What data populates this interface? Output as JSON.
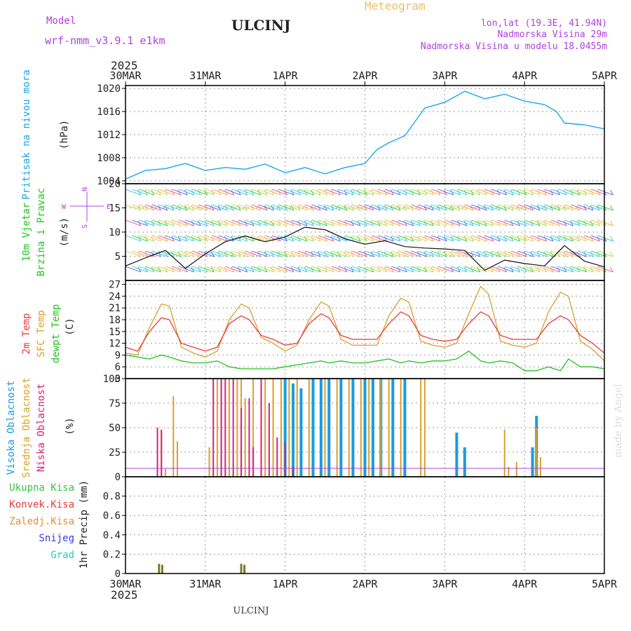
{
  "header": {
    "model_label": "Model",
    "model_name": "wrf-nmm_v3.9.1 e1km",
    "station": "ULCINJ",
    "title": "Meteogram",
    "coords": "lon,lat (19.3E, 41.94N)",
    "elevation": "Nadmorska Visina 29m",
    "model_elevation": "Nadmorska Visina u modelu 18.0455m",
    "year_top": "2025",
    "year_bottom": "2025",
    "footer": "ULCINJ",
    "watermark": "made by Angel"
  },
  "colors": {
    "pressure": "#1aa7e6",
    "temp2m": "#e83c3c",
    "sfc_temp": "#d9a02a",
    "dewpoint": "#22c322",
    "cloud_high": "#1a9be0",
    "cloud_mid": "#d9a02a",
    "cloud_low": "#d8207a",
    "precip_total": "#3ec13e",
    "precip_conv": "#e83c3c",
    "precip_frozen": "#f08a30",
    "snow": "#3a3ae0",
    "hail": "#2ac7c7",
    "precip_bar": "#7a7a2a",
    "title_orange": "#e8c06a",
    "purple": "#b040e0"
  },
  "chart_data": [
    {
      "type": "line",
      "panel": "pressure",
      "ylabel": [
        "Pritisak na nivou mora",
        "(hPa)"
      ],
      "x_ticks": [
        "30MAR",
        "31MAR",
        "1APR",
        "2APR",
        "3APR",
        "4APR",
        "5APR"
      ],
      "ylim": [
        1003.5,
        1020.5
      ],
      "yticks": [
        1004,
        1008,
        1012,
        1016,
        1020
      ],
      "grid": true,
      "x_days": [
        0,
        0.25,
        0.5,
        0.75,
        1.0,
        1.25,
        1.5,
        1.75,
        2.0,
        2.25,
        2.5,
        2.75,
        3.0,
        3.15,
        3.3,
        3.5,
        3.75,
        4.0,
        4.25,
        4.5,
        4.75,
        5.0,
        5.25,
        5.4,
        5.5,
        5.75,
        6.0
      ],
      "values": [
        1004.3,
        1005.8,
        1006.1,
        1007.0,
        1005.8,
        1006.3,
        1006.0,
        1006.9,
        1005.4,
        1006.3,
        1005.2,
        1006.3,
        1007.0,
        1009.4,
        1010.6,
        1011.8,
        1016.6,
        1017.6,
        1019.5,
        1018.2,
        1019.0,
        1017.8,
        1017.2,
        1016.0,
        1014.0,
        1013.7,
        1013.0
      ]
    },
    {
      "type": "line",
      "panel": "wind",
      "ylabel": [
        "10m Vjetar",
        "Brzina i Pravac",
        "(m/s)"
      ],
      "compass": {
        "N": "N",
        "E": "E",
        "S": "S",
        "W": "W"
      },
      "ylim": [
        0,
        20
      ],
      "yticks": [
        5,
        10,
        15,
        20
      ],
      "x_days": [
        0,
        0.3,
        0.5,
        0.75,
        1.0,
        1.25,
        1.5,
        1.75,
        2.0,
        2.25,
        2.5,
        2.75,
        3.0,
        3.25,
        3.5,
        3.75,
        4.0,
        4.25,
        4.5,
        4.75,
        5.0,
        5.25,
        5.5,
        5.75,
        6.0
      ],
      "series": [
        {
          "name": "speed",
          "values": [
            3.0,
            5.0,
            6.2,
            2.5,
            5.5,
            8.0,
            9.2,
            8.0,
            9.0,
            11.0,
            10.5,
            8.6,
            7.5,
            8.2,
            7.0,
            6.7,
            6.5,
            6.2,
            2.1,
            4.2,
            3.5,
            3.0,
            7.2,
            4.0,
            2.8
          ]
        }
      ]
    },
    {
      "type": "line",
      "panel": "temperature",
      "ylabel": [
        "2m Temp",
        "SFC Temp",
        "dewpt Temp",
        "(C)"
      ],
      "ylim": [
        3,
        28
      ],
      "yticks": [
        3,
        6,
        9,
        12,
        15,
        18,
        21,
        24,
        27
      ],
      "x_days": [
        0,
        0.15,
        0.3,
        0.45,
        0.55,
        0.7,
        0.85,
        1.0,
        1.15,
        1.3,
        1.45,
        1.55,
        1.7,
        1.85,
        2.0,
        2.15,
        2.3,
        2.45,
        2.55,
        2.7,
        2.85,
        3.0,
        3.15,
        3.3,
        3.45,
        3.55,
        3.7,
        3.85,
        4.0,
        4.15,
        4.3,
        4.45,
        4.55,
        4.7,
        4.85,
        5.0,
        5.15,
        5.3,
        5.45,
        5.55,
        5.7,
        5.85,
        6.0
      ],
      "series": [
        {
          "name": "2m Temp",
          "values": [
            11,
            10,
            15,
            18.5,
            18,
            12,
            11,
            10,
            11,
            17,
            19,
            18,
            14,
            13,
            11.5,
            12,
            17,
            19.5,
            18.5,
            14,
            13,
            13,
            13,
            17,
            20,
            19,
            14,
            13,
            12.5,
            13,
            17,
            20,
            19,
            14,
            13,
            13,
            13,
            17,
            19,
            18,
            14,
            12,
            9.5
          ]
        },
        {
          "name": "SFC Temp",
          "values": [
            9.5,
            9,
            16,
            22,
            21.5,
            11,
            9.5,
            8.5,
            10,
            18,
            22,
            21,
            13.5,
            12,
            10,
            11.5,
            18,
            22.5,
            21.5,
            13,
            11.5,
            11.5,
            11.5,
            19,
            23.5,
            22.5,
            12.5,
            11.5,
            11,
            12,
            19.5,
            26.5,
            24.5,
            12.5,
            11.5,
            11,
            12,
            20,
            25,
            24,
            12.5,
            10.5,
            7.5
          ]
        },
        {
          "name": "dewpt Temp",
          "values": [
            9,
            8.5,
            8,
            9,
            8.5,
            7.5,
            7,
            7,
            7.5,
            6,
            5.5,
            5.5,
            5.5,
            5.5,
            6,
            6.5,
            7,
            7.5,
            7,
            7.5,
            7,
            7,
            7.5,
            8,
            7,
            7.5,
            7,
            7.5,
            7.5,
            8,
            10,
            7.5,
            7,
            7.5,
            7,
            5,
            5,
            6,
            5,
            8,
            6,
            6,
            5.5
          ]
        }
      ]
    },
    {
      "type": "bar",
      "panel": "clouds",
      "ylabel": [
        "Visoka Oblacnost",
        "Srednja Oblacnost",
        "Niska Oblacnost",
        "(%)"
      ],
      "ylim": [
        0,
        100
      ],
      "yticks": [
        0,
        25,
        50,
        75,
        100
      ],
      "series": [
        {
          "name": "Visoka Oblacnost",
          "x_days": [
            2.0,
            2.1,
            2.2,
            2.35,
            2.45,
            2.55,
            2.7,
            2.85,
            3.0,
            3.1,
            3.2,
            3.35,
            3.5,
            4.15,
            4.25,
            5.1,
            5.15
          ],
          "values": [
            100,
            95,
            90,
            100,
            100,
            100,
            100,
            100,
            100,
            100,
            100,
            100,
            100,
            45,
            30,
            30,
            62
          ]
        },
        {
          "name": "Srednja Oblacnost",
          "x_days": [
            0.45,
            0.5,
            0.6,
            0.65,
            1.05,
            1.15,
            1.2,
            1.3,
            1.4,
            1.45,
            1.5,
            1.6,
            1.7,
            1.75,
            1.85,
            1.95,
            2.05,
            2.15,
            2.3,
            2.5,
            2.65,
            2.8,
            2.95,
            3.05,
            3.2,
            3.3,
            3.45,
            3.7,
            3.75,
            4.75,
            4.8,
            4.9,
            5.15,
            5.2
          ],
          "values": [
            47,
            8,
            82,
            36,
            30,
            100,
            100,
            100,
            100,
            100,
            80,
            100,
            100,
            100,
            100,
            100,
            100,
            100,
            100,
            100,
            100,
            100,
            100,
            100,
            100,
            100,
            100,
            100,
            100,
            48,
            10,
            15,
            50,
            20
          ]
        },
        {
          "name": "Niska Oblacnost",
          "x_days": [
            0.4,
            0.45,
            1.1,
            1.2,
            1.25,
            1.35,
            1.45,
            1.55,
            1.6,
            1.7,
            1.8,
            1.9,
            2.0,
            2.1
          ],
          "values": [
            50,
            48,
            100,
            100,
            100,
            100,
            70,
            80,
            30,
            100,
            75,
            40,
            35,
            10
          ]
        }
      ]
    },
    {
      "type": "bar",
      "panel": "precip",
      "ylabel": [
        "1hr Precip (mm)"
      ],
      "legend": [
        "Ukupna Kisa",
        "Konvek.Kisa",
        "Zaledj.Kisa",
        "Snijeg",
        "Grad"
      ],
      "ylim": [
        0,
        1.0
      ],
      "yticks": [
        0,
        0.2,
        0.4,
        0.6,
        0.8
      ],
      "x_days": [
        0.42,
        0.46,
        1.45,
        1.49
      ],
      "values": [
        0.1,
        0.09,
        0.1,
        0.09
      ]
    }
  ]
}
